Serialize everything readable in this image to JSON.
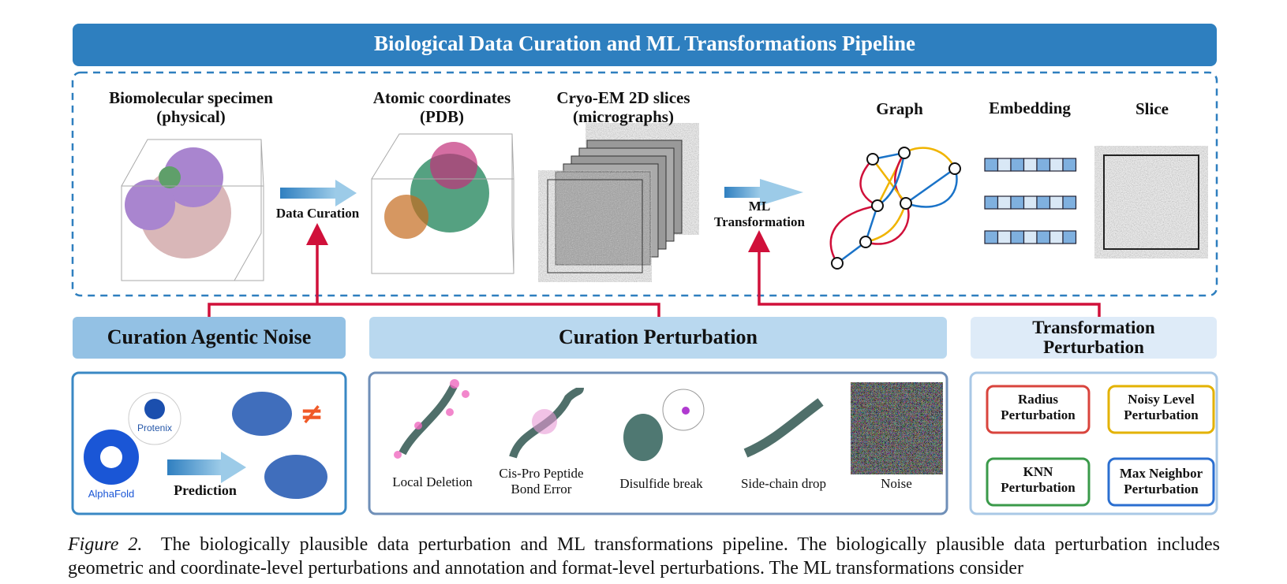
{
  "title": "Biological Data Curation and ML Transformations Pipeline",
  "pipeline": {
    "stages": [
      "Biomolecular specimen\n(physical)",
      "Atomic coordinates\n(PDB)",
      "Cryo-EM 2D slices\n(micrographs)"
    ],
    "curation_arrow": "Data Curation",
    "transform_arrow": "ML\nTransformation",
    "representations": [
      "Graph",
      "Embedding",
      "Slice"
    ]
  },
  "curation_agentic_noise": {
    "title": "Curation Agentic Noise",
    "logos": [
      "Protenix",
      "AlphaFold"
    ],
    "arrow_label": "Prediction",
    "symbol": "≠"
  },
  "curation_perturbation": {
    "title": "Curation Perturbation",
    "items": [
      "Local Deletion",
      "Cis-Pro Peptide\nBond Error",
      "Disulfide break",
      "Side-chain drop",
      "Noise"
    ]
  },
  "transformation_perturbation": {
    "title": "Transformation\nPerturbation",
    "items": [
      "Radius\nPerturbation",
      "Noisy Level\nPerturbation",
      "KNN\nPerturbation",
      "Max Neighbor\nPerturbation"
    ]
  },
  "caption": {
    "label": "Figure 2.",
    "text": "The biologically plausible data perturbation and ML transformations pipeline. The biologically plausible data perturbation includes geometric and coordinate-level perturbations and annotation and format-level perturbations. The ML transformations consider"
  }
}
